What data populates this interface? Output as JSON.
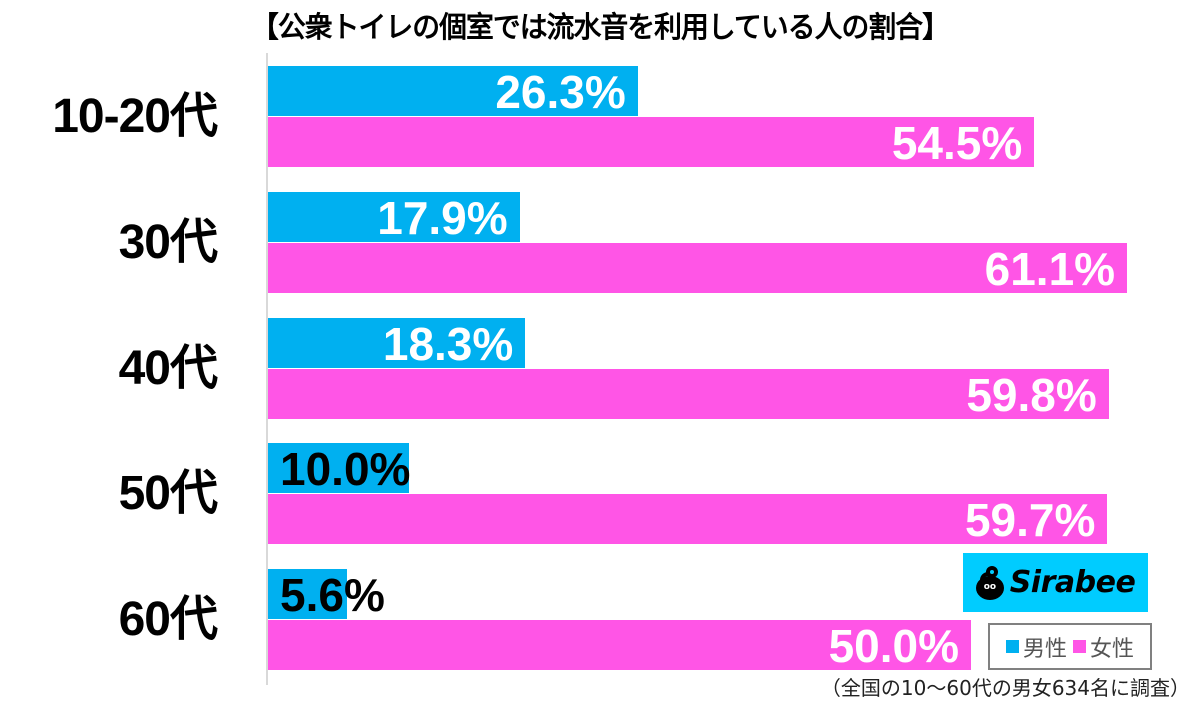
{
  "header": {
    "title": "【公衆トイレの個室では流水音を利用している人の割合】"
  },
  "legend": {
    "items": [
      {
        "label": "男性",
        "color": "#00b0f0"
      },
      {
        "label": "女性",
        "color": "#ff55e6"
      }
    ]
  },
  "logo": {
    "text": "Sirabee",
    "background": "#00ccff"
  },
  "footnote": "（全国の10〜60代の男女634名に調査）",
  "rows": [
    {
      "category": "10-20代",
      "male": {
        "value": 26.3,
        "label": "26.3%"
      },
      "female": {
        "value": 54.5,
        "label": "54.5%"
      }
    },
    {
      "category": "30代",
      "male": {
        "value": 17.9,
        "label": "17.9%"
      },
      "female": {
        "value": 61.1,
        "label": "61.1%"
      }
    },
    {
      "category": "40代",
      "male": {
        "value": 18.3,
        "label": "18.3%"
      },
      "female": {
        "value": 59.8,
        "label": "59.8%"
      }
    },
    {
      "category": "50代",
      "male": {
        "value": 10.0,
        "label": "10.0%"
      },
      "female": {
        "value": 59.7,
        "label": "59.7%"
      }
    },
    {
      "category": "60代",
      "male": {
        "value": 5.6,
        "label": "5.6%"
      },
      "female": {
        "value": 50.0,
        "label": "50.0%"
      }
    }
  ],
  "chart_data": {
    "type": "bar",
    "orientation": "horizontal",
    "title": "【公衆トイレの個室では流水音を利用している人の割合】",
    "categories": [
      "10-20代",
      "30代",
      "40代",
      "50代",
      "60代"
    ],
    "series": [
      {
        "name": "男性",
        "color": "#00b0f0",
        "values": [
          26.3,
          17.9,
          18.3,
          10.0,
          5.6
        ]
      },
      {
        "name": "女性",
        "color": "#ff55e6",
        "values": [
          54.5,
          61.1,
          59.8,
          59.7,
          50.0
        ]
      }
    ],
    "xlabel": "",
    "ylabel": "",
    "unit": "%",
    "xlim": [
      0,
      66
    ],
    "grid": false,
    "legend_position": "bottom-right",
    "data_labels": true,
    "annotations": [
      "（全国の10〜60代の男女634名に調査）",
      "Sirabee"
    ]
  }
}
